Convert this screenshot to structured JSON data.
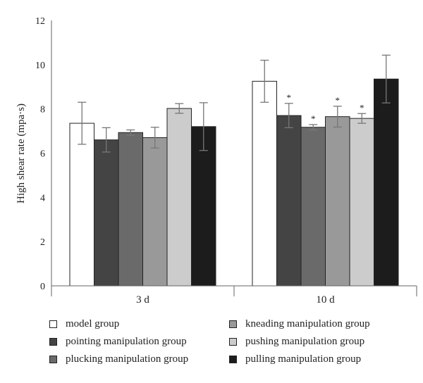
{
  "chart_data": {
    "type": "bar",
    "categories": [
      "3 d",
      "10 d"
    ],
    "ylabel": "High shear rate (mpa·s)",
    "ylim": [
      0,
      12
    ],
    "yticks": [
      0,
      2,
      4,
      6,
      8,
      10,
      12
    ],
    "grid": false,
    "legend_position": "bottom",
    "series": [
      {
        "name": "model group",
        "color": "#ffffff",
        "values": [
          7.35,
          9.25
        ],
        "errors": [
          0.95,
          0.95
        ],
        "sig": [
          "",
          ""
        ]
      },
      {
        "name": "pointing manipulation group",
        "color": "#444444",
        "values": [
          6.6,
          7.7
        ],
        "errors": [
          0.55,
          0.55
        ],
        "sig": [
          "",
          "*"
        ]
      },
      {
        "name": "plucking manipulation group",
        "color": "#6a6a6a",
        "values": [
          6.93,
          7.17
        ],
        "errors": [
          0.12,
          0.12
        ],
        "sig": [
          "",
          "*"
        ]
      },
      {
        "name": "kneading manipulation group",
        "color": "#999999",
        "values": [
          6.7,
          7.65
        ],
        "errors": [
          0.47,
          0.47
        ],
        "sig": [
          "",
          "*"
        ]
      },
      {
        "name": "pushing manipulation group",
        "color": "#cccccc",
        "values": [
          8.02,
          7.57
        ],
        "errors": [
          0.22,
          0.22
        ],
        "sig": [
          "",
          "*"
        ]
      },
      {
        "name": "pulling manipulation group",
        "color": "#1c1c1c",
        "values": [
          7.2,
          9.35
        ],
        "errors": [
          1.08,
          1.08
        ],
        "sig": [
          "",
          ""
        ]
      }
    ]
  },
  "legend": [
    {
      "label": "model group",
      "color": "#ffffff"
    },
    {
      "label": "kneading manipulation group",
      "color": "#999999"
    },
    {
      "label": "pointing manipulation group",
      "color": "#444444"
    },
    {
      "label": "pushing manipulation group",
      "color": "#cccccc"
    },
    {
      "label": "plucking manipulation group",
      "color": "#6a6a6a"
    },
    {
      "label": "pulling manipulation group",
      "color": "#1c1c1c"
    }
  ]
}
